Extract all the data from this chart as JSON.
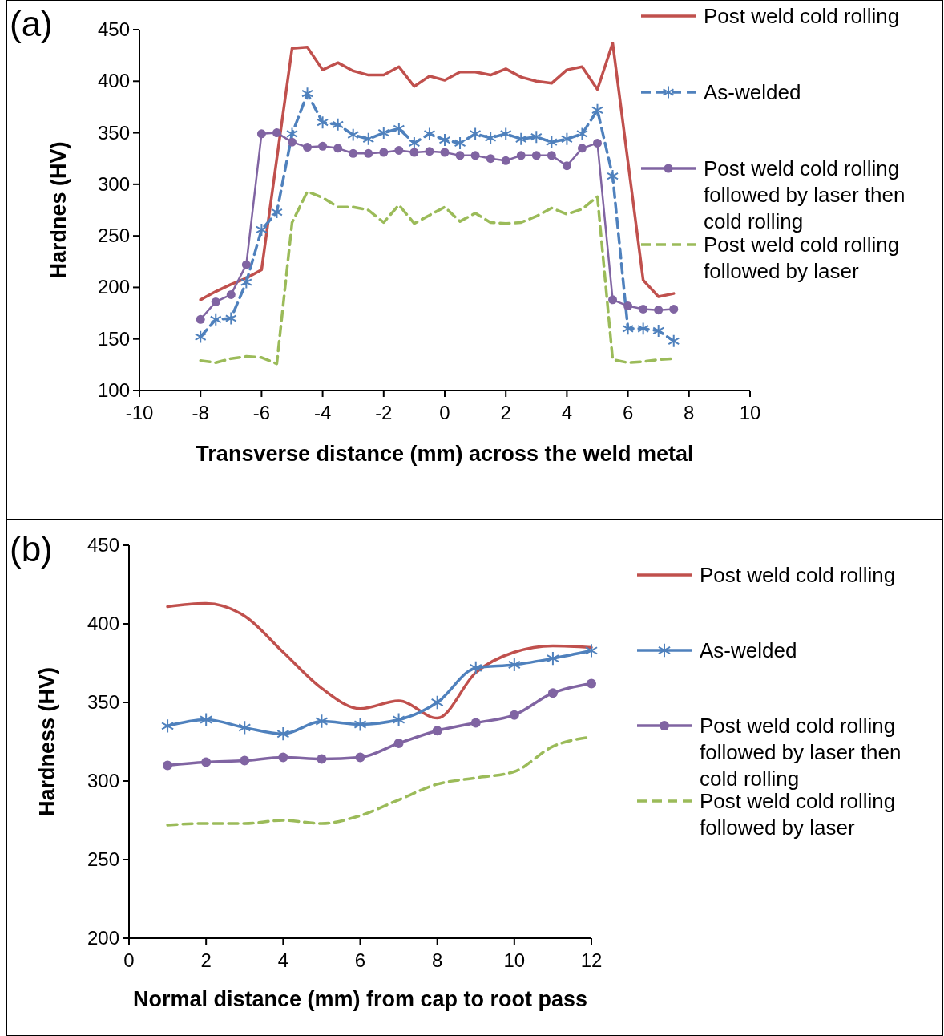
{
  "chart_data": [
    {
      "type": "line",
      "title": "(a)",
      "xlabel": "Transverse distance (mm) across the weld metal",
      "ylabel": "Hardnes (HV)",
      "xlim": [
        -10,
        10
      ],
      "xticks": [
        -10,
        -8,
        -6,
        -4,
        -2,
        0,
        2,
        4,
        6,
        8,
        10
      ],
      "ylim": [
        100,
        450
      ],
      "yticks": [
        100,
        150,
        200,
        250,
        300,
        350,
        400,
        450
      ],
      "grid": false,
      "legend": "right",
      "x": [
        -8,
        -7.5,
        -7,
        -6.5,
        -6,
        -5.5,
        -5,
        -4.5,
        -4,
        -3.5,
        -3,
        -2.5,
        -2,
        -1.5,
        -1,
        -0.5,
        0,
        0.5,
        1,
        1.5,
        2,
        2.5,
        3,
        3.5,
        4,
        4.5,
        5,
        5.5,
        6,
        6.5,
        7,
        7.5
      ],
      "series": [
        {
          "name": "Post weld cold rolling",
          "color": "#c0504d",
          "marker": "none",
          "line_style": "solid",
          "values": [
            188,
            196,
            203,
            209,
            217,
            325,
            432,
            433,
            411,
            418,
            410,
            406,
            406,
            414,
            395,
            405,
            401,
            409,
            409,
            406,
            412,
            404,
            400,
            398,
            411,
            414,
            392,
            437,
            322,
            207,
            191,
            194
          ]
        },
        {
          "name": "As-welded",
          "color": "#4f81bd",
          "marker": "cross",
          "line_style": "dashed",
          "values": [
            152,
            169,
            170,
            205,
            256,
            273,
            349,
            388,
            360,
            358,
            348,
            344,
            350,
            354,
            340,
            349,
            343,
            340,
            349,
            345,
            349,
            344,
            346,
            341,
            344,
            349,
            372,
            308,
            160,
            160,
            158,
            148
          ]
        },
        {
          "name": "Post weld cold rolling followed by laser then cold rolling",
          "color": "#8064a2",
          "marker": "circle",
          "line_style": "solid",
          "values": [
            169,
            186,
            193,
            222,
            349,
            350,
            341,
            336,
            337,
            335,
            330,
            330,
            331,
            333,
            331,
            332,
            331,
            328,
            328,
            325,
            323,
            328,
            328,
            328,
            318,
            335,
            340,
            188,
            182,
            179,
            178,
            179
          ]
        },
        {
          "name": "Post weld cold rolling followed by laser",
          "color": "#9bbb59",
          "marker": "none",
          "line_style": "dashed",
          "values": [
            129,
            127,
            131,
            133,
            132,
            126,
            263,
            293,
            287,
            278,
            278,
            275,
            263,
            280,
            262,
            270,
            278,
            264,
            272,
            263,
            262,
            263,
            269,
            277,
            271,
            276,
            288,
            130,
            127,
            128,
            130,
            131
          ]
        }
      ]
    },
    {
      "type": "line",
      "title": "(b)",
      "xlabel": "Normal distance (mm) from cap to root pass",
      "ylabel": "Hardness (HV)",
      "xlim": [
        0,
        12
      ],
      "xticks": [
        0,
        2,
        4,
        6,
        8,
        10,
        12
      ],
      "ylim": [
        200,
        450
      ],
      "yticks": [
        200,
        250,
        300,
        350,
        400,
        450
      ],
      "grid": false,
      "legend": "right",
      "x": [
        1,
        2,
        3,
        4,
        5,
        6,
        7,
        8,
        9,
        10,
        11,
        12
      ],
      "series": [
        {
          "name": "Post weld cold rolling",
          "color": "#c0504d",
          "marker": "none",
          "line_style": "solid",
          "values": [
            411,
            413,
            405,
            382,
            359,
            346,
            351,
            340,
            369,
            382,
            386,
            385
          ]
        },
        {
          "name": "As-welded",
          "color": "#4f81bd",
          "marker": "cross",
          "line_style": "solid",
          "values": [
            335,
            339,
            334,
            330,
            338,
            336,
            339,
            350,
            372,
            374,
            378,
            383
          ]
        },
        {
          "name": "Post weld cold rolling followed by laser then cold rolling",
          "color": "#8064a2",
          "marker": "circle",
          "line_style": "solid",
          "values": [
            310,
            312,
            313,
            315,
            314,
            315,
            324,
            332,
            337,
            342,
            356,
            362
          ]
        },
        {
          "name": "Post weld cold rolling followed by laser",
          "color": "#9bbb59",
          "marker": "none",
          "line_style": "dashed",
          "values": [
            272,
            273,
            273,
            275,
            273,
            278,
            288,
            298,
            302,
            306,
            322,
            328
          ]
        }
      ]
    }
  ]
}
